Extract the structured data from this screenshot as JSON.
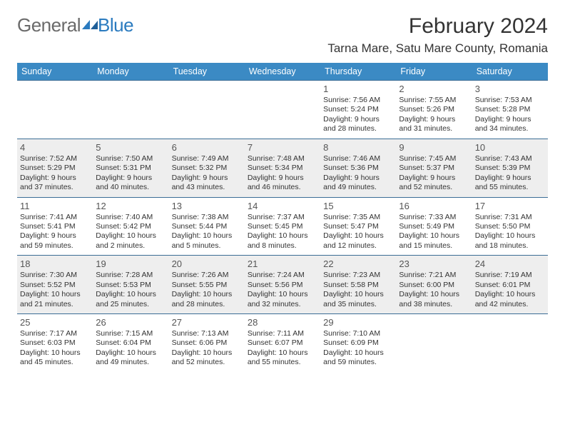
{
  "logo": {
    "text_a": "General",
    "text_b": "Blue",
    "mark_color": "#2b7bbf"
  },
  "header": {
    "month_title": "February 2024",
    "location": "Tarna Mare, Satu Mare County, Romania"
  },
  "colors": {
    "header_bg": "#3b8ac4",
    "header_text": "#ffffff",
    "row_border": "#3b6d95",
    "alt_row_bg": "#eeeeee",
    "text": "#333333"
  },
  "day_headers": [
    "Sunday",
    "Monday",
    "Tuesday",
    "Wednesday",
    "Thursday",
    "Friday",
    "Saturday"
  ],
  "weeks": [
    [
      null,
      null,
      null,
      null,
      {
        "n": "1",
        "sr": "7:56 AM",
        "ss": "5:24 PM",
        "dl": "9 hours and 28 minutes."
      },
      {
        "n": "2",
        "sr": "7:55 AM",
        "ss": "5:26 PM",
        "dl": "9 hours and 31 minutes."
      },
      {
        "n": "3",
        "sr": "7:53 AM",
        "ss": "5:28 PM",
        "dl": "9 hours and 34 minutes."
      }
    ],
    [
      {
        "n": "4",
        "sr": "7:52 AM",
        "ss": "5:29 PM",
        "dl": "9 hours and 37 minutes."
      },
      {
        "n": "5",
        "sr": "7:50 AM",
        "ss": "5:31 PM",
        "dl": "9 hours and 40 minutes."
      },
      {
        "n": "6",
        "sr": "7:49 AM",
        "ss": "5:32 PM",
        "dl": "9 hours and 43 minutes."
      },
      {
        "n": "7",
        "sr": "7:48 AM",
        "ss": "5:34 PM",
        "dl": "9 hours and 46 minutes."
      },
      {
        "n": "8",
        "sr": "7:46 AM",
        "ss": "5:36 PM",
        "dl": "9 hours and 49 minutes."
      },
      {
        "n": "9",
        "sr": "7:45 AM",
        "ss": "5:37 PM",
        "dl": "9 hours and 52 minutes."
      },
      {
        "n": "10",
        "sr": "7:43 AM",
        "ss": "5:39 PM",
        "dl": "9 hours and 55 minutes."
      }
    ],
    [
      {
        "n": "11",
        "sr": "7:41 AM",
        "ss": "5:41 PM",
        "dl": "9 hours and 59 minutes."
      },
      {
        "n": "12",
        "sr": "7:40 AM",
        "ss": "5:42 PM",
        "dl": "10 hours and 2 minutes."
      },
      {
        "n": "13",
        "sr": "7:38 AM",
        "ss": "5:44 PM",
        "dl": "10 hours and 5 minutes."
      },
      {
        "n": "14",
        "sr": "7:37 AM",
        "ss": "5:45 PM",
        "dl": "10 hours and 8 minutes."
      },
      {
        "n": "15",
        "sr": "7:35 AM",
        "ss": "5:47 PM",
        "dl": "10 hours and 12 minutes."
      },
      {
        "n": "16",
        "sr": "7:33 AM",
        "ss": "5:49 PM",
        "dl": "10 hours and 15 minutes."
      },
      {
        "n": "17",
        "sr": "7:31 AM",
        "ss": "5:50 PM",
        "dl": "10 hours and 18 minutes."
      }
    ],
    [
      {
        "n": "18",
        "sr": "7:30 AM",
        "ss": "5:52 PM",
        "dl": "10 hours and 21 minutes."
      },
      {
        "n": "19",
        "sr": "7:28 AM",
        "ss": "5:53 PM",
        "dl": "10 hours and 25 minutes."
      },
      {
        "n": "20",
        "sr": "7:26 AM",
        "ss": "5:55 PM",
        "dl": "10 hours and 28 minutes."
      },
      {
        "n": "21",
        "sr": "7:24 AM",
        "ss": "5:56 PM",
        "dl": "10 hours and 32 minutes."
      },
      {
        "n": "22",
        "sr": "7:23 AM",
        "ss": "5:58 PM",
        "dl": "10 hours and 35 minutes."
      },
      {
        "n": "23",
        "sr": "7:21 AM",
        "ss": "6:00 PM",
        "dl": "10 hours and 38 minutes."
      },
      {
        "n": "24",
        "sr": "7:19 AM",
        "ss": "6:01 PM",
        "dl": "10 hours and 42 minutes."
      }
    ],
    [
      {
        "n": "25",
        "sr": "7:17 AM",
        "ss": "6:03 PM",
        "dl": "10 hours and 45 minutes."
      },
      {
        "n": "26",
        "sr": "7:15 AM",
        "ss": "6:04 PM",
        "dl": "10 hours and 49 minutes."
      },
      {
        "n": "27",
        "sr": "7:13 AM",
        "ss": "6:06 PM",
        "dl": "10 hours and 52 minutes."
      },
      {
        "n": "28",
        "sr": "7:11 AM",
        "ss": "6:07 PM",
        "dl": "10 hours and 55 minutes."
      },
      {
        "n": "29",
        "sr": "7:10 AM",
        "ss": "6:09 PM",
        "dl": "10 hours and 59 minutes."
      },
      null,
      null
    ]
  ],
  "labels": {
    "sunrise": "Sunrise: ",
    "sunset": "Sunset: ",
    "daylight": "Daylight: "
  }
}
